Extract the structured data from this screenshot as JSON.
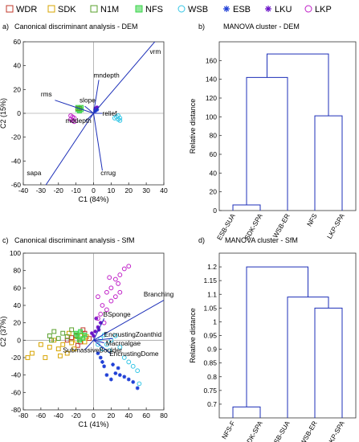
{
  "legend": {
    "entries": [
      {
        "label": "WDR",
        "color": "#c0392b",
        "marker": "square"
      },
      {
        "label": "SDK",
        "color": "#d7a400",
        "marker": "square"
      },
      {
        "label": "N1M",
        "color": "#5aa02c",
        "marker": "square"
      },
      {
        "label": "NFS",
        "color": "#3ad44a",
        "marker": "square-filled"
      },
      {
        "label": "WSB",
        "color": "#33c6e6",
        "marker": "circle"
      },
      {
        "label": "ESB",
        "color": "#1f3fd6",
        "marker": "asterisk"
      },
      {
        "label": "LKU",
        "color": "#6a12c8",
        "marker": "asterisk"
      },
      {
        "label": "LKP",
        "color": "#c020c8",
        "marker": "circle"
      }
    ]
  },
  "panels": {
    "a": {
      "label": "a)",
      "title": "Canonical discriminant analysis - DEM"
    },
    "b": {
      "label": "b)",
      "title": "MANOVA cluster - DEM"
    },
    "c": {
      "label": "c)",
      "title": "Canonical discriminant analysis - SfM"
    },
    "d": {
      "label": "d)",
      "title": "MANOVA cluster - SfM"
    }
  },
  "chart_data": [
    {
      "type": "scatter",
      "panel": "a",
      "title": "Canonical discriminant analysis - DEM",
      "xlabel": "C1 (84%)",
      "ylabel": "C2 (15%)",
      "xlim": [
        -40,
        40
      ],
      "ylim": [
        -60,
        60
      ],
      "xticks": [
        -40,
        -30,
        -20,
        -10,
        0,
        10,
        20,
        30,
        40
      ],
      "yticks": [
        -60,
        -40,
        -20,
        0,
        20,
        40,
        60
      ],
      "vectors": [
        {
          "name": "vrm",
          "x": 36,
          "y": 62,
          "lx": 32,
          "ly": 50
        },
        {
          "name": "mndepth",
          "x": 3,
          "y": 28,
          "lx": 0,
          "ly": 30
        },
        {
          "name": "rms",
          "x": -22,
          "y": 11,
          "lx": -30,
          "ly": 14
        },
        {
          "name": "slope",
          "x": -5,
          "y": 6,
          "lx": -8,
          "ly": 9
        },
        {
          "name": "relief",
          "x": 5,
          "y": 0,
          "lx": 5,
          "ly": -2
        },
        {
          "name": "mddepth",
          "x": -5,
          "y": -7,
          "lx": -16,
          "ly": -8
        },
        {
          "name": "sapa",
          "x": -28,
          "y": -62,
          "lx": -38,
          "ly": -52
        },
        {
          "name": "crrug",
          "x": 5,
          "y": -48,
          "lx": 4,
          "ly": -52
        }
      ],
      "groups": [
        {
          "name": "NFS",
          "points": [
            [
              -8,
              4
            ],
            [
              -9,
              3
            ],
            [
              -7,
              5
            ],
            [
              -8,
              2
            ],
            [
              -9,
              5
            ],
            [
              -7,
              3
            ]
          ]
        },
        {
          "name": "LKP",
          "points": [
            [
              -12,
              -3
            ],
            [
              -13,
              -5
            ],
            [
              -11,
              -4
            ],
            [
              -12,
              -6
            ],
            [
              -13,
              -2
            ],
            [
              -11,
              -7
            ]
          ]
        },
        {
          "name": "LKU",
          "points": [
            [
              1,
              3
            ],
            [
              2,
              5
            ],
            [
              1,
              4
            ]
          ]
        },
        {
          "name": "ESB",
          "points": [
            [
              1,
              2
            ],
            [
              2,
              3
            ]
          ]
        },
        {
          "name": "WSB",
          "points": [
            [
              13,
              -3
            ],
            [
              14,
              -5
            ],
            [
              15,
              -6
            ],
            [
              12,
              -4
            ],
            [
              14,
              -2
            ],
            [
              15,
              -4
            ]
          ]
        },
        {
          "name": "N1M",
          "points": [
            [
              -8,
              4
            ],
            [
              -9,
              4
            ]
          ]
        }
      ]
    },
    {
      "type": "dendrogram",
      "panel": "b",
      "title": "MANOVA cluster - DEM",
      "ylabel": "Relative distance",
      "ylim": [
        0,
        180
      ],
      "yticks": [
        0,
        20,
        40,
        60,
        80,
        100,
        120,
        140,
        160
      ],
      "leaves": [
        "ESB-SUA",
        "SDK-SPA",
        "WSB-ER",
        "NFS",
        "LKP-SPA"
      ],
      "merges": [
        {
          "left": 0,
          "right": 1,
          "height": 6
        },
        {
          "left": "0+1",
          "right": 2,
          "height": 142
        },
        {
          "left": 3,
          "right": 4,
          "height": 101
        },
        {
          "left": "0+1+2",
          "right": "3+4",
          "height": 167
        }
      ]
    },
    {
      "type": "scatter",
      "panel": "c",
      "title": "Canonical discriminant analysis - SfM",
      "xlabel": "C1 (41%)",
      "ylabel": "C2 (37%)",
      "xlim": [
        -80,
        80
      ],
      "ylim": [
        -80,
        100
      ],
      "xticks": [
        -80,
        -60,
        -40,
        -20,
        0,
        20,
        40,
        60,
        80
      ],
      "yticks": [
        -80,
        -60,
        -40,
        -20,
        0,
        20,
        40,
        60,
        80,
        100
      ],
      "vectors": [
        {
          "name": "Branching",
          "x": 80,
          "y": 46,
          "lx": 57,
          "ly": 50
        },
        {
          "name": "BSponge",
          "x": 12,
          "y": 25,
          "lx": 11,
          "ly": 27
        },
        {
          "name": "EncrustingZoanthid",
          "x": 22,
          "y": 2,
          "lx": 12,
          "ly": 4
        },
        {
          "name": "Macroalgae",
          "x": 12,
          "y": -3,
          "lx": 14,
          "ly": -6
        },
        {
          "name": "SubmassiveBoulder",
          "x": -10,
          "y": -11,
          "lx": -35,
          "ly": -14
        },
        {
          "name": "EncrustingDome",
          "x": 20,
          "y": -16,
          "lx": 18,
          "ly": -18
        }
      ],
      "groups": [
        {
          "name": "WDR",
          "points": [
            [
              -20,
              5
            ],
            [
              -15,
              -2
            ],
            [
              -25,
              3
            ],
            [
              -10,
              8
            ],
            [
              -18,
              -6
            ],
            [
              -5,
              2
            ],
            [
              -30,
              0
            ],
            [
              -12,
              12
            ]
          ]
        },
        {
          "name": "SDK",
          "points": [
            [
              -75,
              -20
            ],
            [
              -70,
              -15
            ],
            [
              -55,
              -20
            ],
            [
              -50,
              -8
            ],
            [
              -40,
              -10
            ],
            [
              -35,
              -5
            ],
            [
              -30,
              -15
            ],
            [
              -25,
              -3
            ],
            [
              -20,
              0
            ],
            [
              -15,
              5
            ],
            [
              -10,
              -2
            ],
            [
              -45,
              0
            ],
            [
              -60,
              -5
            ],
            [
              -28,
              8
            ],
            [
              -8,
              4
            ],
            [
              -38,
              -18
            ],
            [
              -22,
              -10
            ]
          ]
        },
        {
          "name": "N1M",
          "points": [
            [
              -50,
              5
            ],
            [
              -45,
              10
            ],
            [
              -40,
              2
            ],
            [
              -35,
              8
            ],
            [
              -30,
              4
            ],
            [
              -25,
              12
            ],
            [
              -20,
              6
            ],
            [
              -48,
              0
            ]
          ]
        },
        {
          "name": "NFS",
          "points": [
            [
              -20,
              8
            ],
            [
              -18,
              4
            ],
            [
              -15,
              10
            ],
            [
              -12,
              2
            ],
            [
              -10,
              6
            ],
            [
              -16,
              0
            ]
          ]
        },
        {
          "name": "WSB",
          "points": [
            [
              5,
              -5
            ],
            [
              10,
              -10
            ],
            [
              15,
              -5
            ],
            [
              20,
              0
            ],
            [
              25,
              5
            ],
            [
              30,
              -8
            ],
            [
              35,
              -20
            ],
            [
              40,
              -25
            ],
            [
              45,
              -30
            ],
            [
              50,
              -35
            ],
            [
              52,
              -50
            ],
            [
              8,
              2
            ],
            [
              12,
              6
            ],
            [
              18,
              -12
            ]
          ]
        },
        {
          "name": "ESB",
          "points": [
            [
              8,
              -20
            ],
            [
              12,
              -30
            ],
            [
              15,
              -40
            ],
            [
              20,
              -45
            ],
            [
              25,
              -38
            ],
            [
              30,
              -40
            ],
            [
              35,
              -42
            ],
            [
              40,
              -45
            ],
            [
              45,
              -48
            ],
            [
              50,
              -55
            ],
            [
              22,
              -28
            ],
            [
              28,
              -32
            ],
            [
              10,
              -25
            ],
            [
              5,
              -15
            ]
          ]
        },
        {
          "name": "LKU",
          "points": [
            [
              2,
              10
            ],
            [
              5,
              15
            ],
            [
              8,
              20
            ],
            [
              0,
              5
            ],
            [
              3,
              25
            ],
            [
              6,
              12
            ],
            [
              -2,
              8
            ]
          ]
        },
        {
          "name": "LKP",
          "points": [
            [
              5,
              25
            ],
            [
              10,
              40
            ],
            [
              15,
              55
            ],
            [
              20,
              60
            ],
            [
              25,
              70
            ],
            [
              30,
              75
            ],
            [
              35,
              82
            ],
            [
              40,
              85
            ],
            [
              15,
              35
            ],
            [
              20,
              45
            ],
            [
              25,
              50
            ],
            [
              8,
              30
            ],
            [
              12,
              20
            ],
            [
              28,
              65
            ],
            [
              18,
              72
            ],
            [
              5,
              50
            ],
            [
              30,
              55
            ]
          ]
        }
      ]
    },
    {
      "type": "dendrogram",
      "panel": "d",
      "title": "MANOVA cluster - SfM",
      "ylabel": "Relative distance",
      "ylim": [
        0.65,
        1.25
      ],
      "yticks": [
        0.7,
        0.75,
        0.8,
        0.85,
        0.9,
        0.95,
        1,
        1.05,
        1.1,
        1.15,
        1.2
      ],
      "leaves": [
        "NFS-F",
        "SDK-SPA",
        "ESB-SUA",
        "WSB-ER",
        "LKP-SPA"
      ],
      "merges": [
        {
          "left": 0,
          "right": 1,
          "height": 0.69
        },
        {
          "left": 3,
          "right": 4,
          "height": 1.05
        },
        {
          "left": 2,
          "right": "3+4",
          "height": 1.09
        },
        {
          "left": "0+1",
          "right": "2+3+4",
          "height": 1.2
        }
      ]
    }
  ]
}
